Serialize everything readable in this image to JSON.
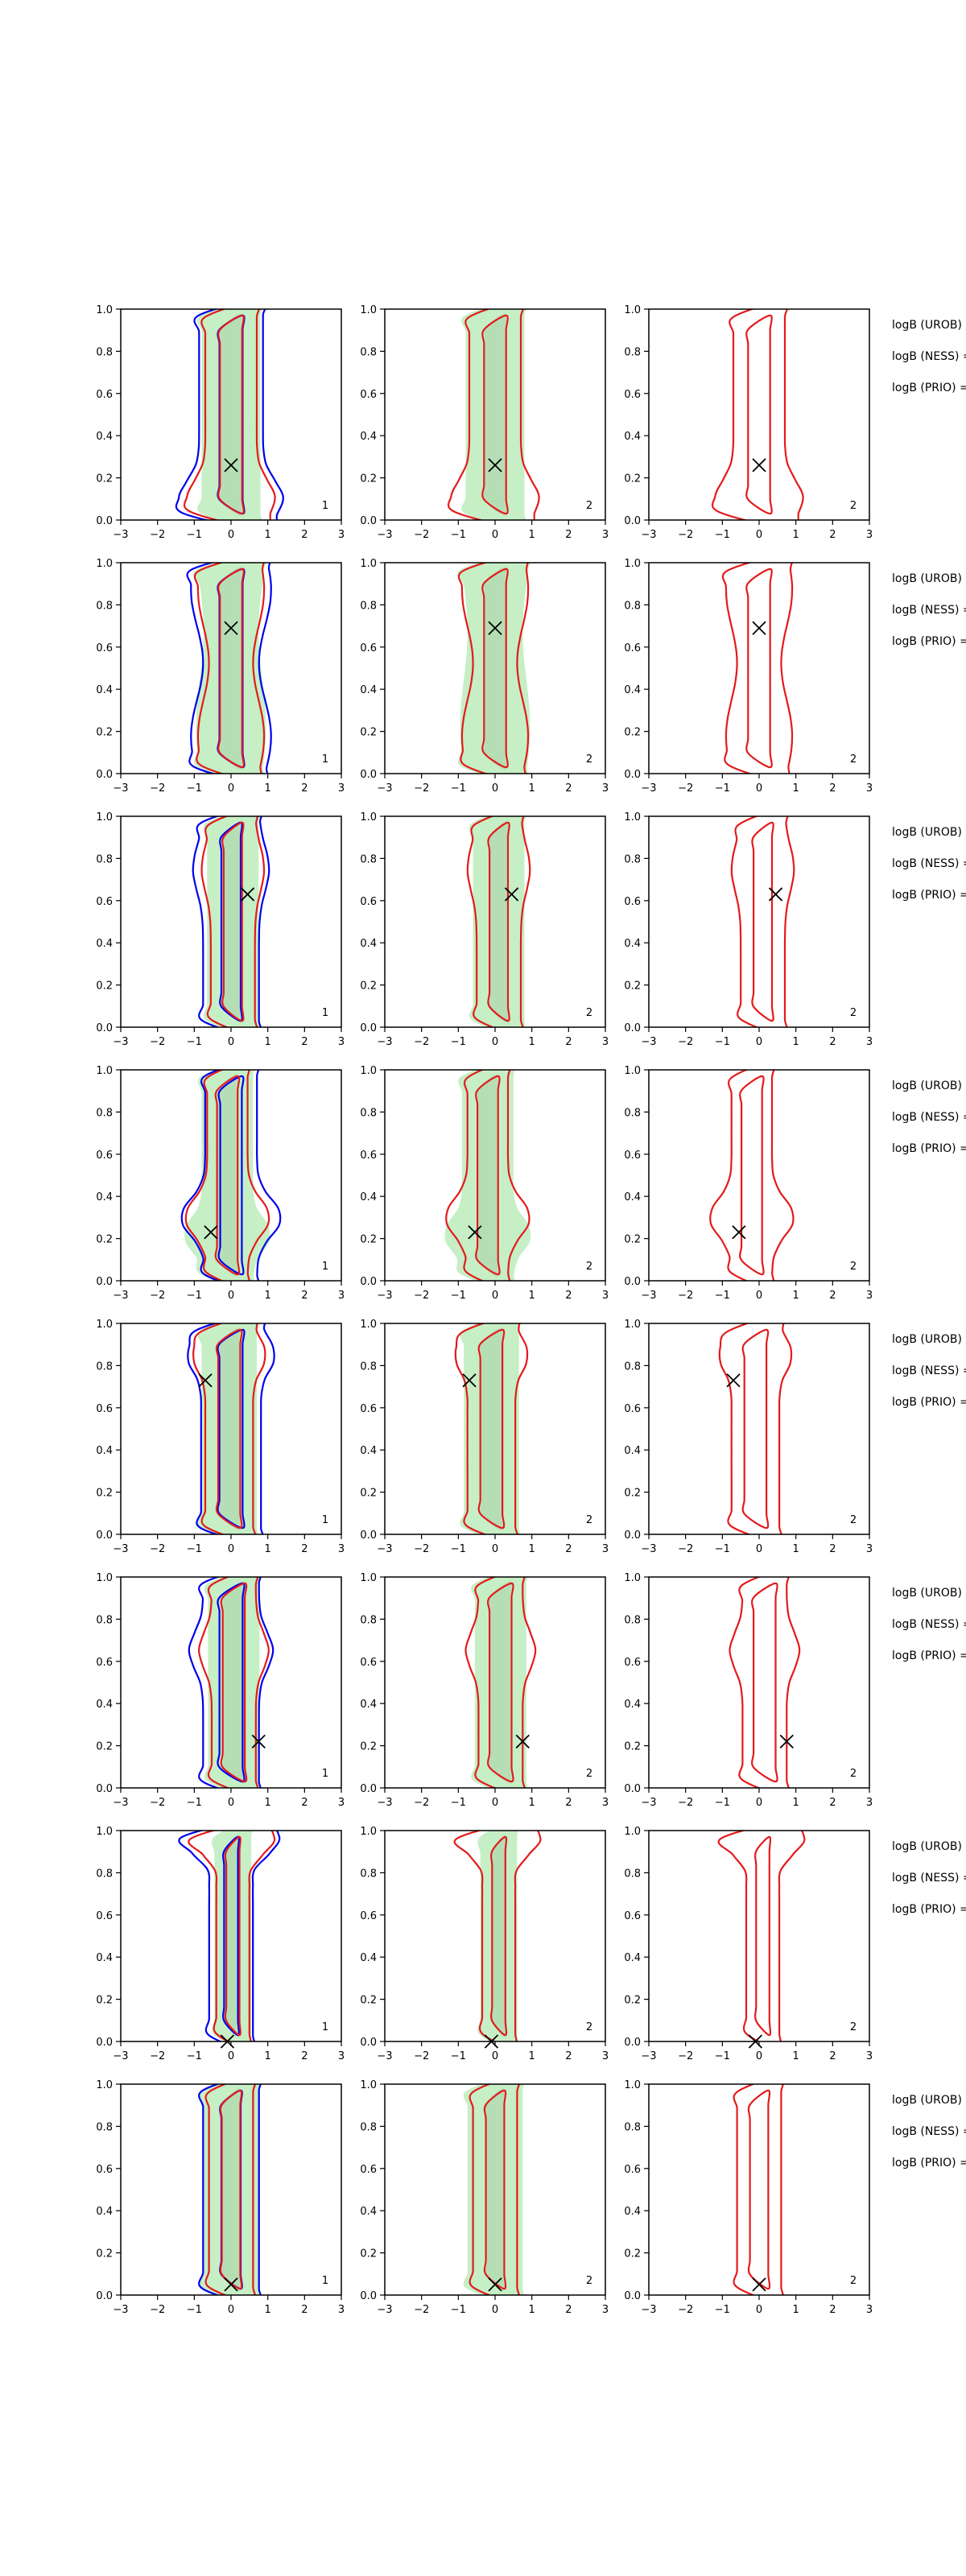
{
  "figure": {
    "rows": 8,
    "annotations": [
      "logB (UROB) =",
      "logB (NESS) =",
      "logB (PRIO) ="
    ],
    "panel_labels": [
      "1",
      "2",
      "2"
    ]
  },
  "colors": {
    "fill_outer": "#c6efc6",
    "fill_inner": "#a8cfa8",
    "contour_red": "#e41a1c",
    "contour_blue": "#0000ee",
    "marker": "#000000",
    "axis": "#000000"
  },
  "chart_data": {
    "type": "contour",
    "xlim": [
      -3,
      3
    ],
    "ylim": [
      0,
      1
    ],
    "xticks": [
      -3,
      -2,
      -1,
      0,
      1,
      2,
      3
    ],
    "yticks": [
      0.0,
      0.2,
      0.4,
      0.6,
      0.8,
      1.0
    ],
    "xlabel": "",
    "ylabel": "",
    "legend": "none",
    "grid": false,
    "columns": [
      {
        "index": 1,
        "corner_label": "1",
        "layers": [
          "green-fill",
          "red-contours",
          "blue-contours",
          "marker"
        ]
      },
      {
        "index": 2,
        "corner_label": "2",
        "layers": [
          "green-fill",
          "red-contours",
          "marker"
        ]
      },
      {
        "index": 3,
        "corner_label": "2",
        "layers": [
          "red-contours",
          "marker"
        ]
      }
    ],
    "marker_points": [
      {
        "row": 1,
        "x": 0.0,
        "y": 0.26
      },
      {
        "row": 2,
        "x": 0.0,
        "y": 0.69
      },
      {
        "row": 3,
        "x": 0.45,
        "y": 0.63
      },
      {
        "row": 4,
        "x": -0.55,
        "y": 0.23
      },
      {
        "row": 5,
        "x": -0.7,
        "y": 0.73
      },
      {
        "row": 6,
        "x": 0.75,
        "y": 0.22
      },
      {
        "row": 7,
        "x": -0.1,
        "y": 0.0
      },
      {
        "row": 8,
        "x": 0.0,
        "y": 0.05
      }
    ]
  }
}
